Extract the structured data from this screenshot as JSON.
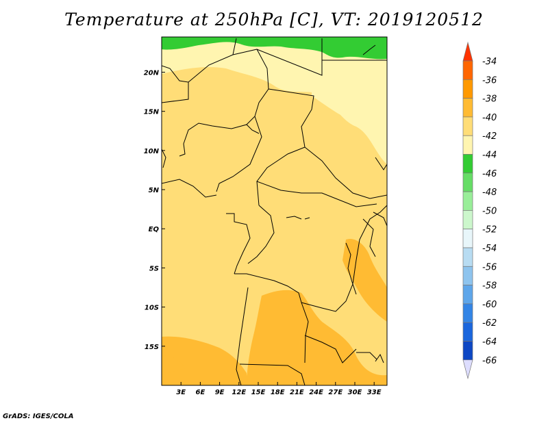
{
  "title": "Temperature at 250hPa [C], VT: 2019120512",
  "footer": "GrADS: IGES/COLA",
  "map": {
    "lon_range": [
      0,
      35
    ],
    "lat_range": [
      -20,
      24.5
    ],
    "lat_ticks": [
      {
        "value": 20,
        "label": "20N"
      },
      {
        "value": 15,
        "label": "15N"
      },
      {
        "value": 10,
        "label": "10N"
      },
      {
        "value": 5,
        "label": "5N"
      },
      {
        "value": 0,
        "label": "EQ"
      },
      {
        "value": -5,
        "label": "5S"
      },
      {
        "value": -10,
        "label": "10S"
      },
      {
        "value": -15,
        "label": "15S"
      }
    ],
    "lon_ticks": [
      {
        "value": 3,
        "label": "3E"
      },
      {
        "value": 6,
        "label": "6E"
      },
      {
        "value": 9,
        "label": "9E"
      },
      {
        "value": 12,
        "label": "12E"
      },
      {
        "value": 15,
        "label": "15E"
      },
      {
        "value": 18,
        "label": "18E"
      },
      {
        "value": 21,
        "label": "21E"
      },
      {
        "value": 24,
        "label": "24E"
      },
      {
        "value": 27,
        "label": "27E"
      },
      {
        "value": 30,
        "label": "30E"
      },
      {
        "value": 33,
        "label": "33E"
      }
    ]
  },
  "colorbar": {
    "levels": [
      {
        "label": "-34",
        "color": "#ff6600"
      },
      {
        "label": "-36",
        "color": "#ff9900"
      },
      {
        "label": "-38",
        "color": "#ffbb33"
      },
      {
        "label": "-40",
        "color": "#ffdd77"
      },
      {
        "label": "-42",
        "color": "#fff5b0"
      },
      {
        "label": "-44",
        "color": "#33cc33"
      },
      {
        "label": "-46",
        "color": "#66dd66"
      },
      {
        "label": "-48",
        "color": "#99ee99"
      },
      {
        "label": "-50",
        "color": "#ccf7cc"
      },
      {
        "label": "-52",
        "color": "#e8f6fa"
      },
      {
        "label": "-54",
        "color": "#b8dcf2"
      },
      {
        "label": "-56",
        "color": "#8ec4ee"
      },
      {
        "label": "-58",
        "color": "#5ea6ea"
      },
      {
        "label": "-60",
        "color": "#3385e6"
      },
      {
        "label": "-62",
        "color": "#1a66dd"
      },
      {
        "label": "-64",
        "color": "#0d47c4"
      },
      {
        "label": "-66",
        "color": "#1a1a80"
      }
    ],
    "top_arrow_color": "#ff3300",
    "bottom_arrow_color": "#ddddff"
  },
  "fill_colors": {
    "land_default": "#ffdd77",
    "warm_patch": "#ffbb33",
    "cool_patch": "#fff5b0",
    "north_strip": "#33cc33"
  }
}
